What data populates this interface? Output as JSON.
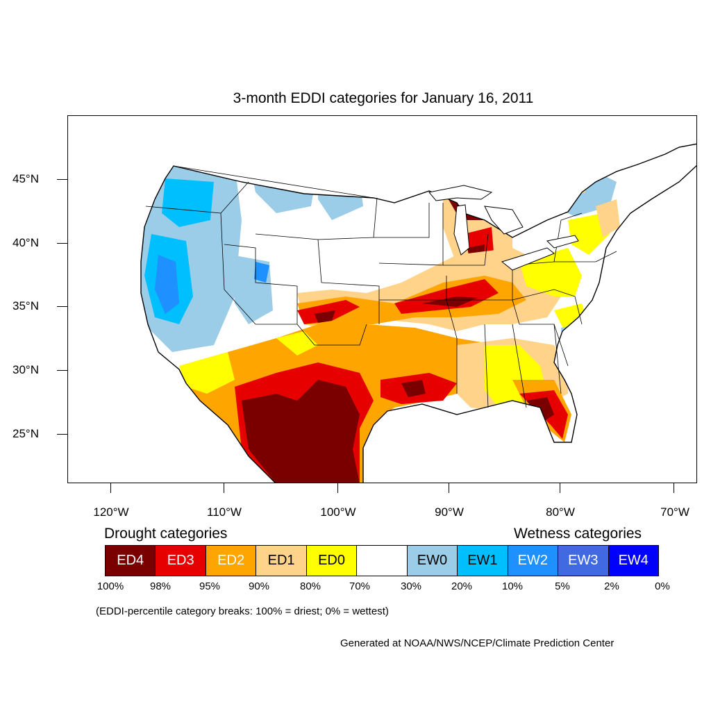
{
  "title": "3-month EDDI categories for January 16, 2011",
  "lat_labels": [
    "45°N",
    "40°N",
    "35°N",
    "30°N",
    "25°N"
  ],
  "lon_labels": [
    "120°W",
    "110°W",
    "100°W",
    "90°W",
    "80°W",
    "70°W"
  ],
  "drought_title": "Drought categories",
  "wetness_title": "Wetness categories",
  "categories": [
    {
      "label": "ED4",
      "color": "#7a0000",
      "text_color": "#ffffff"
    },
    {
      "label": "ED3",
      "color": "#e60000",
      "text_color": "#ffffff"
    },
    {
      "label": "ED2",
      "color": "#ffa500",
      "text_color": "#ffffff"
    },
    {
      "label": "ED1",
      "color": "#ffd38a",
      "text_color": "#000000"
    },
    {
      "label": "ED0",
      "color": "#ffff00",
      "text_color": "#000000"
    },
    {
      "label": "",
      "color": "#ffffff",
      "text_color": "#000000"
    },
    {
      "label": "EW0",
      "color": "#9ccde8",
      "text_color": "#000000"
    },
    {
      "label": "EW1",
      "color": "#00bfff",
      "text_color": "#000000"
    },
    {
      "label": "EW2",
      "color": "#1e90ff",
      "text_color": "#ffffff"
    },
    {
      "label": "EW3",
      "color": "#4169e1",
      "text_color": "#ffffff"
    },
    {
      "label": "EW4",
      "color": "#0000ff",
      "text_color": "#ffffff"
    }
  ],
  "percentiles": [
    "100%",
    "98%",
    "95%",
    "90%",
    "80%",
    "70%",
    "30%",
    "20%",
    "10%",
    "5%",
    "2%",
    "0%"
  ],
  "note": "(EDDI-percentile category breaks: 100% = driest; 0% = wettest)",
  "credit": "Generated at NOAA/NWS/NCEP/Climate Prediction Center"
}
